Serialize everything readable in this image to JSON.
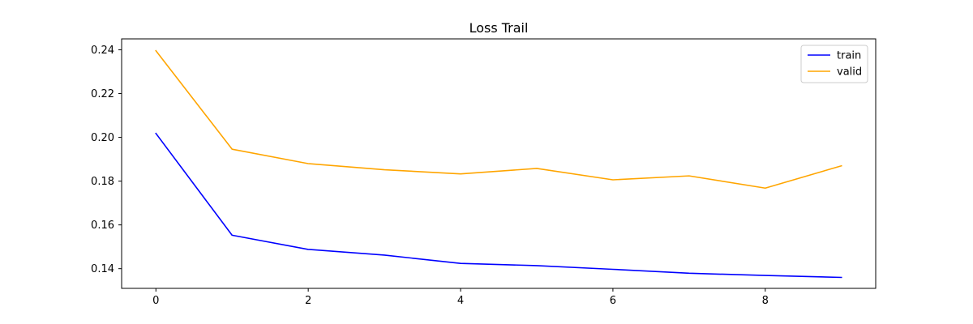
{
  "chart_data": {
    "type": "line",
    "title": "Loss Trail",
    "xlabel": "",
    "ylabel": "",
    "x": [
      0,
      1,
      2,
      3,
      4,
      5,
      6,
      7,
      8,
      9
    ],
    "xlim": [
      -0.45,
      9.45
    ],
    "ylim": [
      0.131,
      0.245
    ],
    "xticks": [
      0,
      2,
      4,
      6,
      8
    ],
    "yticks": [
      0.14,
      0.16,
      0.18,
      0.2,
      0.22,
      0.24
    ],
    "ytick_labels": [
      "0.14",
      "0.16",
      "0.18",
      "0.20",
      "0.22",
      "0.24"
    ],
    "grid": false,
    "legend_position": "top-right",
    "series": [
      {
        "name": "train",
        "color": "#0000ff",
        "values": [
          0.2018,
          0.1553,
          0.1488,
          0.1462,
          0.1424,
          0.1414,
          0.1397,
          0.1379,
          0.1369,
          0.136
        ]
      },
      {
        "name": "valid",
        "color": "#ffa500",
        "values": [
          0.2396,
          0.1946,
          0.188,
          0.1852,
          0.1833,
          0.1858,
          0.1806,
          0.1824,
          0.1768,
          0.187
        ]
      }
    ]
  }
}
